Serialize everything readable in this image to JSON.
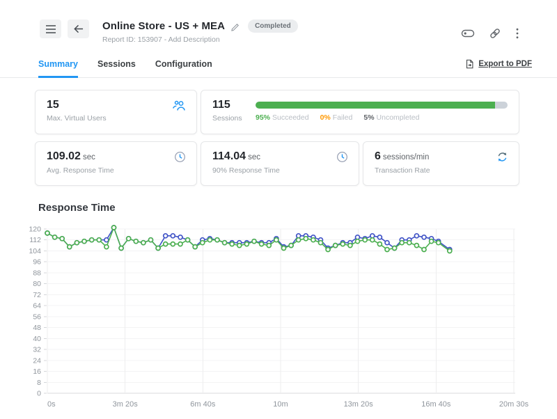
{
  "header": {
    "title": "Online Store - US + MEA",
    "status_badge": "Completed",
    "report_id": "Report ID: 153907",
    "separator": "-",
    "add_description": "Add Description"
  },
  "tabs": [
    {
      "label": "Summary",
      "active": true
    },
    {
      "label": "Sessions",
      "active": false
    },
    {
      "label": "Configuration",
      "active": false
    }
  ],
  "export_pdf_label": "Export to PDF",
  "cards": {
    "max_virtual_users": {
      "value": "15",
      "label": "Max. Virtual Users"
    },
    "sessions": {
      "value": "115",
      "label": "Sessions",
      "progress_pct": 95,
      "legend": [
        {
          "pct": "95%",
          "text": "Succeeded"
        },
        {
          "pct": "0%",
          "text": "Failed"
        },
        {
          "pct": "5%",
          "text": "Uncompleted"
        }
      ]
    },
    "avg_response_time": {
      "value": "109.02",
      "unit": "sec",
      "label": "Avg. Response Time"
    },
    "p90_response_time": {
      "value": "114.04",
      "unit": "sec",
      "label": "90% Response Time"
    },
    "transaction_rate": {
      "value": "6",
      "unit": "sessions/min",
      "label": "Transaction Rate"
    }
  },
  "icons": {
    "menu": "hamburger-menu",
    "back": "arrow-left",
    "edit": "pencil",
    "tag": "label-outline",
    "link": "chain-link",
    "more": "kebab-vertical",
    "virtual_users": "two-people",
    "time": "clock",
    "rate": "sync-arrows",
    "export": "document-export"
  },
  "colors": {
    "accent_blue": "#2196f3",
    "success_green": "#4caf50",
    "warning_orange": "#ff9800",
    "series_blue": "#4053c6",
    "series_green": "#4caf50",
    "bar_track_gray": "#ccd2d9"
  },
  "chart_data": {
    "type": "line",
    "title": "Response Time",
    "xlabel": "",
    "ylabel": "",
    "ylim": [
      0,
      120
    ],
    "y_tick_step": 8,
    "grid": true,
    "legend_position": "none",
    "x_tick_labels": [
      "0s",
      "3m 20s",
      "6m 40s",
      "10m",
      "13m 20s",
      "16m 40s",
      "20m 30s"
    ],
    "x_tick_seconds": [
      0,
      200,
      400,
      600,
      800,
      1000,
      1230
    ],
    "x_seconds": [
      0,
      19,
      38,
      57,
      76,
      95,
      114,
      133,
      152,
      171,
      190,
      209,
      228,
      247,
      266,
      285,
      304,
      323,
      342,
      361,
      380,
      399,
      418,
      437,
      456,
      475,
      494,
      513,
      532,
      551,
      570,
      589,
      608,
      627,
      646,
      665,
      684,
      703,
      722,
      741,
      760,
      779,
      798,
      817,
      836,
      855,
      874,
      893,
      912,
      931,
      950,
      969,
      988,
      1007,
      1040
    ],
    "series": [
      {
        "name": "response-time-blue",
        "color": "#4053c6",
        "values": [
          117,
          114,
          113,
          107,
          110,
          111,
          112,
          112,
          112,
          121,
          106,
          113,
          111,
          110,
          112,
          106,
          115,
          115,
          114,
          112,
          107,
          112,
          113,
          112,
          110,
          110,
          110,
          110,
          111,
          110,
          110,
          113,
          107,
          108,
          115,
          115,
          114,
          112,
          106,
          108,
          110,
          110,
          114,
          113,
          115,
          114,
          110,
          106,
          112,
          112,
          115,
          114,
          113,
          111,
          105
        ]
      },
      {
        "name": "response-time-green",
        "color": "#4caf50",
        "values": [
          117,
          114,
          113,
          107,
          110,
          111,
          112,
          112,
          107,
          121,
          106,
          113,
          111,
          110,
          112,
          106,
          109,
          109,
          109,
          112,
          107,
          110,
          112,
          112,
          110,
          109,
          108,
          109,
          111,
          109,
          108,
          112,
          106,
          108,
          112,
          113,
          112,
          110,
          105,
          108,
          109,
          108,
          111,
          112,
          112,
          109,
          105,
          106,
          110,
          110,
          108,
          105,
          111,
          110,
          104
        ]
      }
    ]
  }
}
